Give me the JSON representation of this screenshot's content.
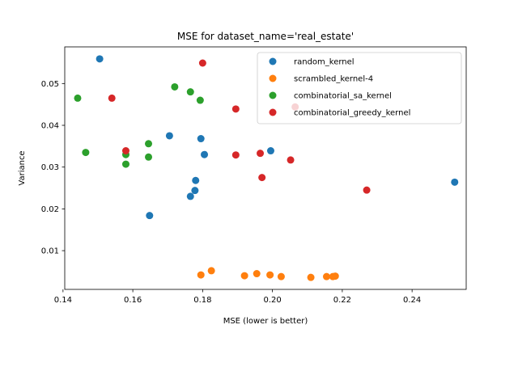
{
  "chart_data": {
    "type": "scatter",
    "title": "MSE for dataset_name='real_estate'",
    "xlabel": "MSE (lower is better)",
    "ylabel": "Variance",
    "xlim": [
      0.1405,
      0.2555
    ],
    "ylim": [
      0.00073,
      0.05877
    ],
    "xticks": [
      "0.14",
      "0.16",
      "0.18",
      "0.20",
      "0.22",
      "0.24"
    ],
    "yticks": [
      "0.01",
      "0.02",
      "0.03",
      "0.04",
      "0.05"
    ],
    "grid": false,
    "legend_position": "top-right",
    "series": [
      {
        "name": "random_kernel",
        "color": "#1f77b4",
        "points": [
          [
            0.1505,
            0.0559
          ],
          [
            0.1705,
            0.0375
          ],
          [
            0.1795,
            0.0368
          ],
          [
            0.1805,
            0.033
          ],
          [
            0.1995,
            0.0339
          ],
          [
            0.178,
            0.0268
          ],
          [
            0.1778,
            0.0244
          ],
          [
            0.1765,
            0.023
          ],
          [
            0.1648,
            0.0184
          ],
          [
            0.2522,
            0.0264
          ]
        ]
      },
      {
        "name": "scrambled_kernel-4",
        "color": "#ff7f0e",
        "points": [
          [
            0.1795,
            0.0042
          ],
          [
            0.1825,
            0.0052
          ],
          [
            0.192,
            0.004
          ],
          [
            0.1955,
            0.0045
          ],
          [
            0.1993,
            0.0042
          ],
          [
            0.2025,
            0.0038
          ],
          [
            0.211,
            0.0036
          ],
          [
            0.2155,
            0.0038
          ],
          [
            0.2173,
            0.0038
          ],
          [
            0.218,
            0.0039
          ]
        ]
      },
      {
        "name": "combinatorial_sa_kernel",
        "color": "#2ca02c",
        "points": [
          [
            0.1442,
            0.0465
          ],
          [
            0.172,
            0.0492
          ],
          [
            0.1765,
            0.048
          ],
          [
            0.1793,
            0.046
          ],
          [
            0.1465,
            0.0335
          ],
          [
            0.158,
            0.033
          ],
          [
            0.158,
            0.0307
          ],
          [
            0.1645,
            0.0356
          ],
          [
            0.1645,
            0.0324
          ]
        ]
      },
      {
        "name": "combinatorial_greedy_kernel",
        "color": "#d62728",
        "points": [
          [
            0.18,
            0.0549
          ],
          [
            0.154,
            0.0465
          ],
          [
            0.1895,
            0.0439
          ],
          [
            0.2065,
            0.0444
          ],
          [
            0.158,
            0.0339
          ],
          [
            0.1895,
            0.0329
          ],
          [
            0.1965,
            0.0333
          ],
          [
            0.2052,
            0.0317
          ],
          [
            0.197,
            0.0275
          ],
          [
            0.227,
            0.0245
          ]
        ]
      }
    ]
  }
}
